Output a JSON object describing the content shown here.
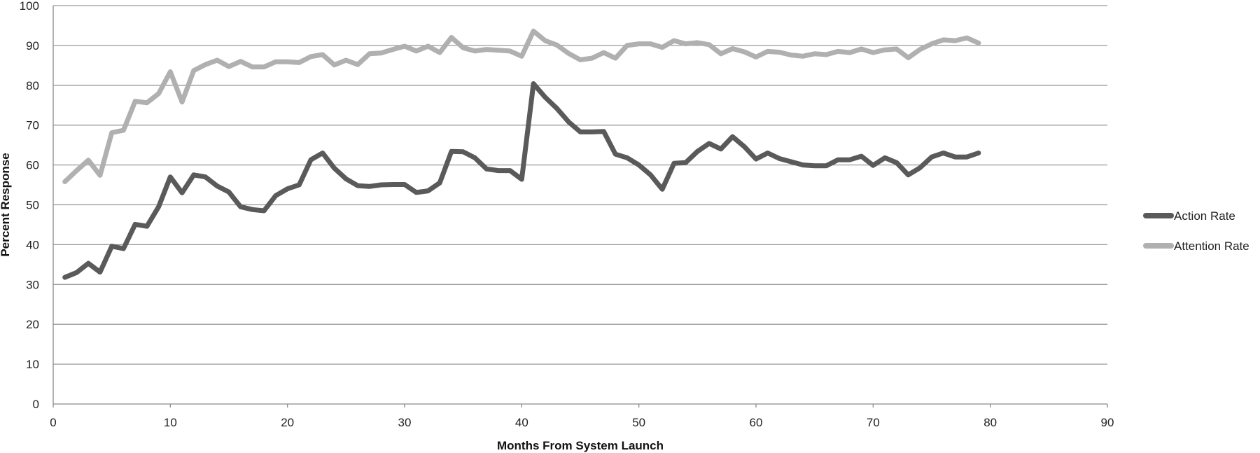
{
  "chart_data": {
    "type": "line",
    "xlabel": "Months From System Launch",
    "ylabel": "Percent Response",
    "xlim": [
      0,
      90
    ],
    "ylim": [
      0,
      100
    ],
    "xticks": [
      0,
      10,
      20,
      30,
      40,
      50,
      60,
      70,
      80,
      90
    ],
    "yticks": [
      0,
      10,
      20,
      30,
      40,
      50,
      60,
      70,
      80,
      90,
      100
    ],
    "grid": "horizontal",
    "legend_position": "right",
    "x": [
      1,
      2,
      3,
      4,
      5,
      6,
      7,
      8,
      9,
      10,
      11,
      12,
      13,
      14,
      15,
      16,
      17,
      18,
      19,
      20,
      21,
      22,
      23,
      24,
      25,
      26,
      27,
      28,
      29,
      30,
      31,
      32,
      33,
      34,
      35,
      36,
      37,
      38,
      39,
      40,
      41,
      42,
      43,
      44,
      45,
      46,
      47,
      48,
      49,
      50,
      51,
      52,
      53,
      54,
      55,
      56,
      57,
      58,
      59,
      60,
      61,
      62,
      63,
      64,
      65,
      66,
      67,
      68,
      69,
      70,
      71,
      72,
      73,
      74,
      75,
      76,
      77,
      78,
      79
    ],
    "series": [
      {
        "name": "Action Rate",
        "color": "#5a5a5a",
        "values": [
          31.8,
          33,
          35.3,
          33.1,
          39.6,
          39,
          45.1,
          44.6,
          49.5,
          57,
          53,
          57.5,
          57,
          54.7,
          53.2,
          49.5,
          48.8,
          48.5,
          52.3,
          54,
          55,
          61.3,
          63,
          59.2,
          56.5,
          54.8,
          54.6,
          55,
          55.1,
          55.1,
          53.1,
          53.5,
          55.5,
          63.4,
          63.3,
          61.8,
          59,
          58.6,
          58.6,
          56.4,
          80.4,
          77,
          74.2,
          70.8,
          68.3,
          68.3,
          68.4,
          62.7,
          61.8,
          60,
          57.5,
          53.9,
          60.4,
          60.6,
          63.4,
          65.4,
          64,
          67.1,
          64.6,
          61.5,
          63,
          61.6,
          60.8,
          60,
          59.8,
          59.8,
          61.3,
          61.3,
          62.2,
          59.9,
          61.8,
          60.6,
          57.5,
          59.3,
          62,
          63,
          62,
          62,
          63
        ]
      },
      {
        "name": "Attention Rate",
        "color": "#b0b0b0",
        "values": [
          55.8,
          58.6,
          61.2,
          57.4,
          68.1,
          68.7,
          76,
          75.6,
          77.9,
          83.4,
          75.8,
          83.7,
          85.2,
          86.3,
          84.7,
          86,
          84.6,
          84.6,
          85.9,
          85.9,
          85.7,
          87.2,
          87.7,
          85.1,
          86.3,
          85.2,
          87.9,
          88.1,
          89,
          89.8,
          88.6,
          89.8,
          88.2,
          92,
          89.4,
          88.6,
          89,
          88.8,
          88.6,
          87.3,
          93.6,
          91.2,
          90.1,
          88,
          86.4,
          86.8,
          88.2,
          86.8,
          90,
          90.4,
          90.4,
          89.5,
          91.2,
          90.4,
          90.7,
          90.2,
          87.9,
          89.2,
          88.4,
          87.1,
          88.5,
          88.3,
          87.6,
          87.3,
          87.9,
          87.7,
          88.5,
          88.2,
          89.1,
          88.2,
          88.9,
          89.1,
          86.9,
          89,
          90.4,
          91.4,
          91.2,
          91.9,
          90.6
        ]
      }
    ]
  }
}
